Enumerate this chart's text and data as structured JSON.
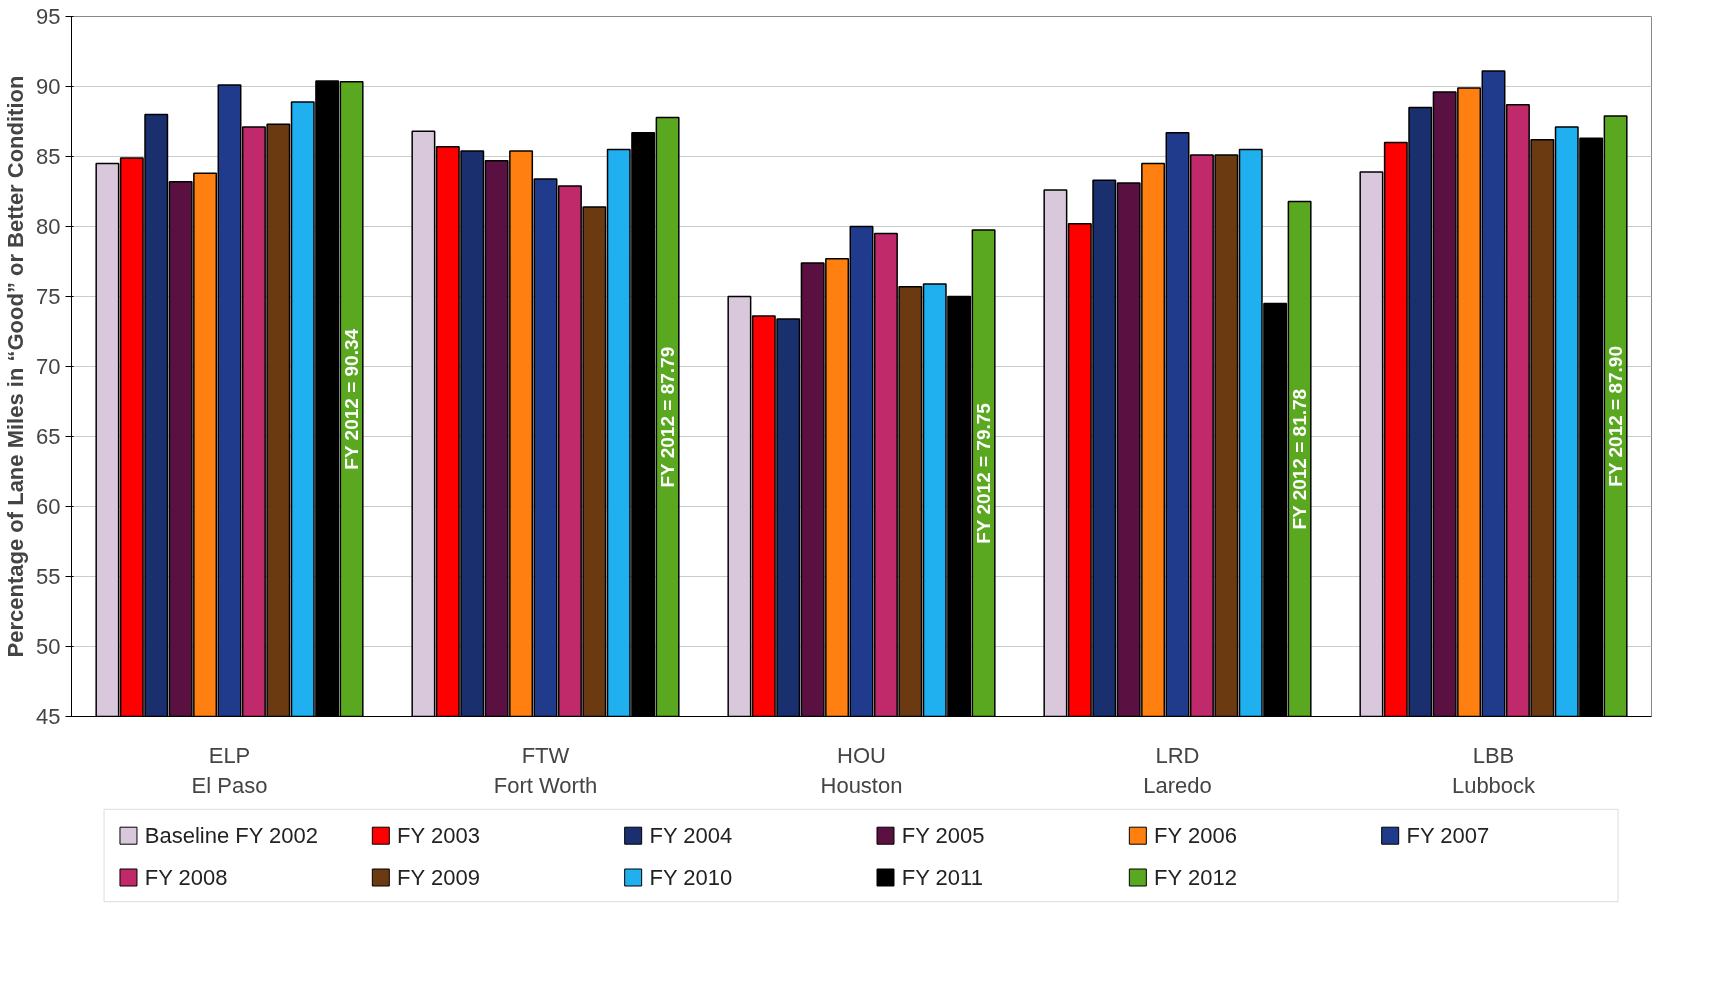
{
  "chart_data": {
    "type": "bar",
    "ylabel": "Percentage of Lane Miles in “Good” or Better Condition",
    "categories": [
      "ELP\nEl Paso",
      "FTW\nFort Worth",
      "HOU\nHouston",
      "LRD\nLaredo",
      "LBB\nLubbock"
    ],
    "ylim": [
      45,
      95
    ],
    "yticks": [
      45,
      50,
      55,
      60,
      65,
      70,
      75,
      80,
      85,
      90,
      95
    ],
    "grid": "y",
    "legend": "bottom",
    "series": [
      {
        "name": "Baseline FY 2002",
        "color": "#d9c8dc",
        "values": [
          84.5,
          86.8,
          75.0,
          82.6,
          83.9
        ]
      },
      {
        "name": "FY 2003",
        "color": "#ff0000",
        "values": [
          84.9,
          85.7,
          73.6,
          80.2,
          86.0
        ]
      },
      {
        "name": "FY 2004",
        "color": "#1a2f6e",
        "values": [
          88.0,
          85.4,
          73.4,
          83.3,
          88.5
        ]
      },
      {
        "name": "FY 2005",
        "color": "#5a1040",
        "values": [
          83.2,
          84.7,
          77.4,
          83.1,
          89.6
        ]
      },
      {
        "name": "FY 2006",
        "color": "#ff8010",
        "values": [
          83.8,
          85.4,
          77.7,
          84.5,
          89.9
        ]
      },
      {
        "name": "FY 2007",
        "color": "#203a8c",
        "values": [
          90.1,
          83.4,
          80.0,
          86.7,
          91.1
        ]
      },
      {
        "name": "FY 2008",
        "color": "#c02a6a",
        "values": [
          87.1,
          82.9,
          79.5,
          85.1,
          88.7
        ]
      },
      {
        "name": "FY 2009",
        "color": "#6b3a10",
        "values": [
          87.3,
          81.4,
          75.7,
          85.1,
          86.2
        ]
      },
      {
        "name": "FY 2010",
        "color": "#20b0f0",
        "values": [
          88.9,
          85.5,
          75.9,
          85.5,
          87.1
        ]
      },
      {
        "name": "FY 2011",
        "color": "#000000",
        "values": [
          90.4,
          86.7,
          75.0,
          74.5,
          86.3
        ]
      },
      {
        "name": "FY 2012",
        "color": "#5aa820",
        "values": [
          90.34,
          87.79,
          79.75,
          81.78,
          87.9
        ],
        "value_labels": [
          "FY 2012 = 90.34",
          "FY 2012 = 87.79",
          "FY 2012 = 79.75",
          "FY 2012 = 81.78",
          "FY 2012 = 87.90"
        ]
      }
    ]
  }
}
